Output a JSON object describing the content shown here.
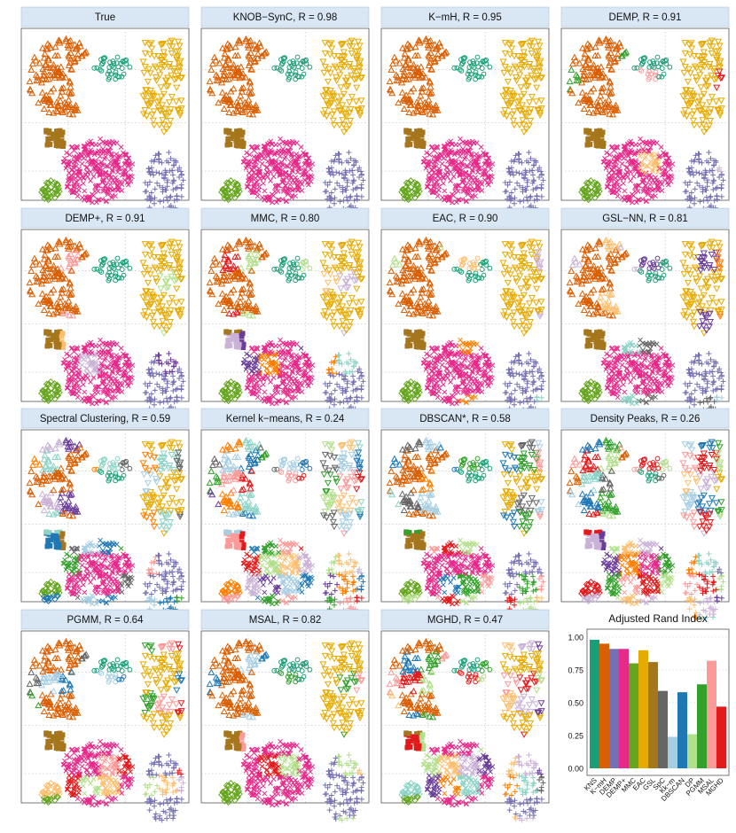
{
  "chart_data": {
    "type": "scatter-facets-with-bar",
    "panels": [
      {
        "title": "True",
        "method": "True",
        "ari": null
      },
      {
        "title": "KNOB−SynC, R = 0.98",
        "method": "KNOB-SynC",
        "ari": 0.98
      },
      {
        "title": "K−mH, R = 0.95",
        "method": "K-mH",
        "ari": 0.95
      },
      {
        "title": "DEMP, R = 0.91",
        "method": "DEMP",
        "ari": 0.91
      },
      {
        "title": "DEMP+, R = 0.91",
        "method": "DEMP+",
        "ari": 0.91
      },
      {
        "title": "MMC, R = 0.80",
        "method": "MMC",
        "ari": 0.8
      },
      {
        "title": "EAC, R = 0.90",
        "method": "EAC",
        "ari": 0.9
      },
      {
        "title": "GSL−NN, R = 0.81",
        "method": "GSL-NN",
        "ari": 0.81
      },
      {
        "title": "Spectral Clustering, R = 0.59",
        "method": "Spectral Clustering",
        "ari": 0.59
      },
      {
        "title": "Kernel k−means, R = 0.24",
        "method": "Kernel k-means",
        "ari": 0.24
      },
      {
        "title": "DBSCAN*, R = 0.58",
        "method": "DBSCAN*",
        "ari": 0.58
      },
      {
        "title": "Density Peaks, R = 0.26",
        "method": "Density Peaks",
        "ari": 0.26
      },
      {
        "title": "PGMM, R = 0.64",
        "method": "PGMM",
        "ari": 0.64
      },
      {
        "title": "MSAL, R = 0.82",
        "method": "MSAL",
        "ari": 0.82
      },
      {
        "title": "MGHD, R = 0.47",
        "method": "MGHD",
        "ari": 0.47
      }
    ],
    "bar": {
      "title": "Adjusted Rand Index",
      "categories": [
        "KNS",
        "K−mH",
        "DEMP",
        "DEMP+",
        "MMC",
        "EAC",
        "GSL",
        "SpC",
        "Kk−m",
        "DBSCAN",
        "DP",
        "PGMM",
        "MSAL",
        "MGHD"
      ],
      "values": [
        0.98,
        0.95,
        0.91,
        0.91,
        0.8,
        0.9,
        0.81,
        0.59,
        0.24,
        0.58,
        0.26,
        0.64,
        0.82,
        0.47
      ],
      "colors": [
        "#1b9e77",
        "#d95f02",
        "#7570b3",
        "#e7298a",
        "#66a61e",
        "#e6ab02",
        "#a6761d",
        "#666666",
        "#a6cee3",
        "#1f78b4",
        "#b2df8a",
        "#33a02c",
        "#fb9a99",
        "#e31a1c"
      ],
      "yticks": [
        "0.00",
        "0.25",
        "0.50",
        "0.75",
        "1.00"
      ],
      "ylim": [
        0,
        1.02
      ]
    },
    "true_clusters": [
      {
        "name": "crescent",
        "color": "#d95f02",
        "glyph": "triangle"
      },
      {
        "name": "ring-small",
        "color": "#1b9e77",
        "glyph": "circle"
      },
      {
        "name": "top-right",
        "color": "#e6ab02",
        "glyph": "triangle-down"
      },
      {
        "name": "square-brown",
        "color": "#a6761d",
        "glyph": "square"
      },
      {
        "name": "big-disc",
        "color": "#e7298a",
        "glyph": "x"
      },
      {
        "name": "bottom-right",
        "color": "#7570b3",
        "glyph": "plus"
      },
      {
        "name": "small-green",
        "color": "#66a61e",
        "glyph": "diamond"
      }
    ]
  }
}
